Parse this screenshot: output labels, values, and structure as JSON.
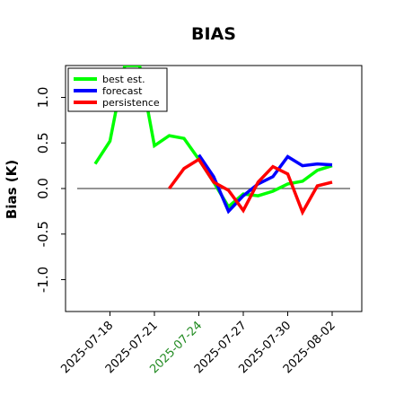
{
  "chart_data": {
    "type": "line",
    "title": "BIAS",
    "xlabel": "",
    "ylabel": "Bias (K)",
    "ylim": [
      -1.35,
      1.35
    ],
    "xlim": [
      "2025-07-15",
      "2025-08-04"
    ],
    "yticks": [
      -1.0,
      -0.5,
      0.0,
      0.5,
      1.0
    ],
    "ytick_labels": [
      "-1.0",
      "-0.5",
      "0.0",
      "0.5",
      "1.0"
    ],
    "xticks": [
      "2025-07-18",
      "2025-07-21",
      "2025-07-24",
      "2025-07-27",
      "2025-07-30",
      "2025-08-02"
    ],
    "xtick_labels": [
      "2025-07-18",
      "2025-07-21",
      "2025-07-24",
      "2025-07-27",
      "2025-07-30",
      "2025-08-02"
    ],
    "highlighted_xtick": "2025-07-24",
    "highlight_color": "#228b22",
    "zero_line": true,
    "grid": false,
    "legend_position": "top-left",
    "series": [
      {
        "name": "best est.",
        "color": "#00ff00",
        "x": [
          "2025-07-17",
          "2025-07-18",
          "2025-07-19",
          "2025-07-20",
          "2025-07-21",
          "2025-07-22",
          "2025-07-23",
          "2025-07-24",
          "2025-07-25",
          "2025-07-26",
          "2025-07-27",
          "2025-07-28",
          "2025-07-29",
          "2025-07-30",
          "2025-07-31",
          "2025-08-01",
          "2025-08-02"
        ],
        "values": [
          0.27,
          0.52,
          1.35,
          1.35,
          0.47,
          0.58,
          0.55,
          0.32,
          0.07,
          -0.2,
          -0.06,
          -0.08,
          -0.03,
          0.05,
          0.08,
          0.2,
          0.25
        ]
      },
      {
        "name": "forecast",
        "color": "#0000ff",
        "x": [
          "2025-07-24",
          "2025-07-25",
          "2025-07-26",
          "2025-07-27",
          "2025-07-28",
          "2025-07-29",
          "2025-07-30",
          "2025-07-31",
          "2025-08-01",
          "2025-08-02"
        ],
        "values": [
          0.37,
          0.13,
          -0.25,
          -0.08,
          0.05,
          0.13,
          0.35,
          0.25,
          0.27,
          0.26
        ]
      },
      {
        "name": "persistence",
        "color": "#ff0000",
        "x": [
          "2025-07-22",
          "2025-07-23",
          "2025-07-24",
          "2025-07-25",
          "2025-07-26",
          "2025-07-27",
          "2025-07-28",
          "2025-07-29",
          "2025-07-30",
          "2025-07-31",
          "2025-08-01",
          "2025-08-02"
        ],
        "values": [
          0.0,
          0.22,
          0.32,
          0.07,
          -0.02,
          -0.24,
          0.07,
          0.24,
          0.16,
          -0.26,
          0.03,
          0.07
        ]
      }
    ]
  }
}
